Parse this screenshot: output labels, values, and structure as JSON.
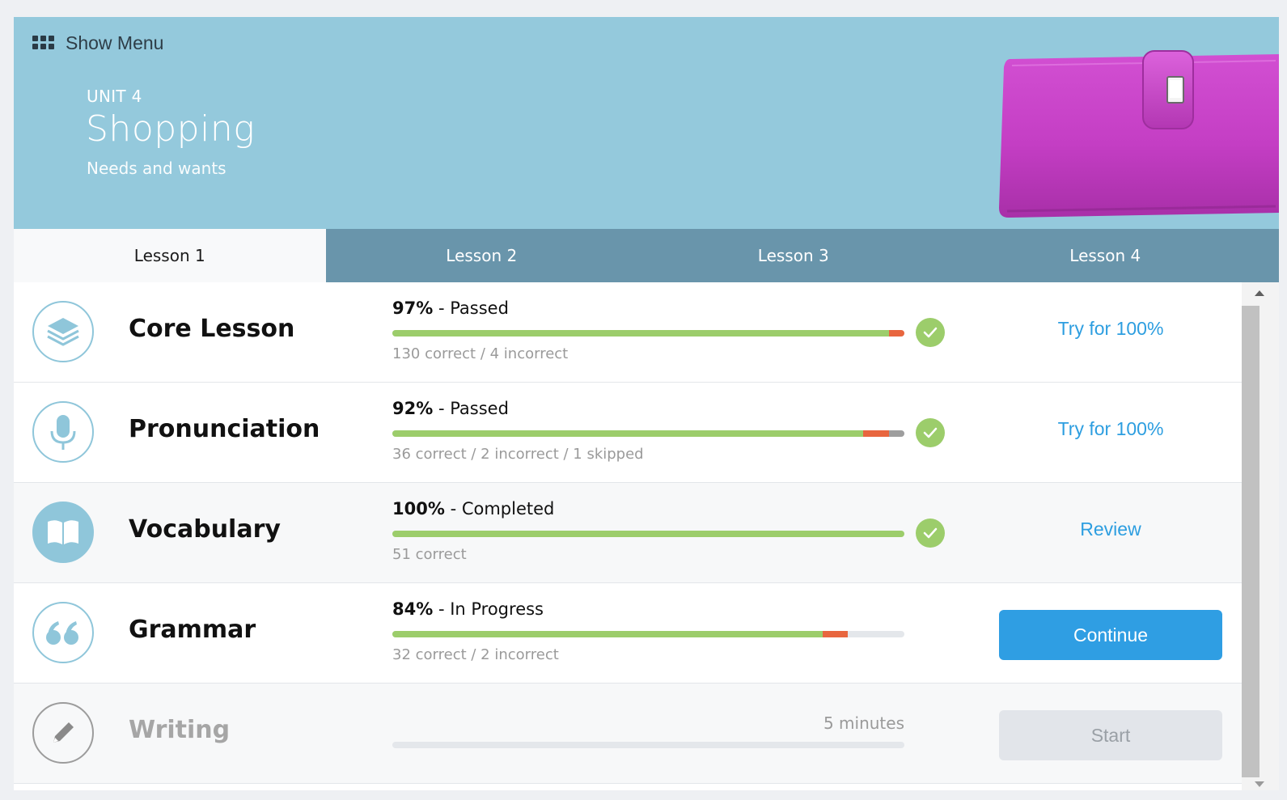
{
  "header": {
    "menu_label": "Show Menu",
    "unit": "UNIT 4",
    "title": "Shopping",
    "subtitle": "Needs and wants"
  },
  "tabs": [
    {
      "label": "Lesson 1",
      "active": true
    },
    {
      "label": "Lesson 2",
      "active": false
    },
    {
      "label": "Lesson 3",
      "active": false
    },
    {
      "label": "Lesson 4",
      "active": false
    }
  ],
  "activities": [
    {
      "name": "Core Lesson",
      "icon": "layers-icon",
      "percent": "97%",
      "status": " - Passed",
      "detail": "130 correct / 4 incorrect",
      "progress": {
        "correct": 0.97,
        "incorrect": 0.03,
        "skipped": 0
      },
      "completed": true,
      "action": "Try for 100%"
    },
    {
      "name": "Pronunciation",
      "icon": "microphone-icon",
      "percent": "92%",
      "status": " - Passed",
      "detail": "36 correct / 2 incorrect / 1 skipped",
      "progress": {
        "correct": 0.92,
        "incorrect": 0.05,
        "skipped": 0.03
      },
      "completed": true,
      "action": "Try for 100%"
    },
    {
      "name": "Vocabulary",
      "icon": "open-book-icon",
      "percent": "100%",
      "status": " - Completed",
      "detail": "51 correct",
      "progress": {
        "correct": 1.0,
        "incorrect": 0,
        "skipped": 0
      },
      "completed": true,
      "action": "Review"
    },
    {
      "name": "Grammar",
      "icon": "quotation-marks-icon",
      "percent": "84%",
      "status": " - In Progress",
      "detail": "32 correct / 2 incorrect",
      "progress": {
        "correct": 0.84,
        "incorrect": 0.05,
        "skipped": 0
      },
      "completed": false,
      "action": "Continue"
    },
    {
      "name": "Writing",
      "icon": "pencil-icon",
      "duration": "5 minutes",
      "progress": {
        "correct": 0,
        "incorrect": 0,
        "skipped": 0
      },
      "completed": false,
      "action": "Start"
    }
  ],
  "colors": {
    "header_bg": "#94c9dc",
    "tab_bar": "#6995ab",
    "correct": "#9ccd6b",
    "incorrect": "#e8663f",
    "skipped": "#9e9e9e",
    "link": "#2d9ee0",
    "primary_button": "#2f9ee3",
    "wallet": "#c93fc9"
  }
}
